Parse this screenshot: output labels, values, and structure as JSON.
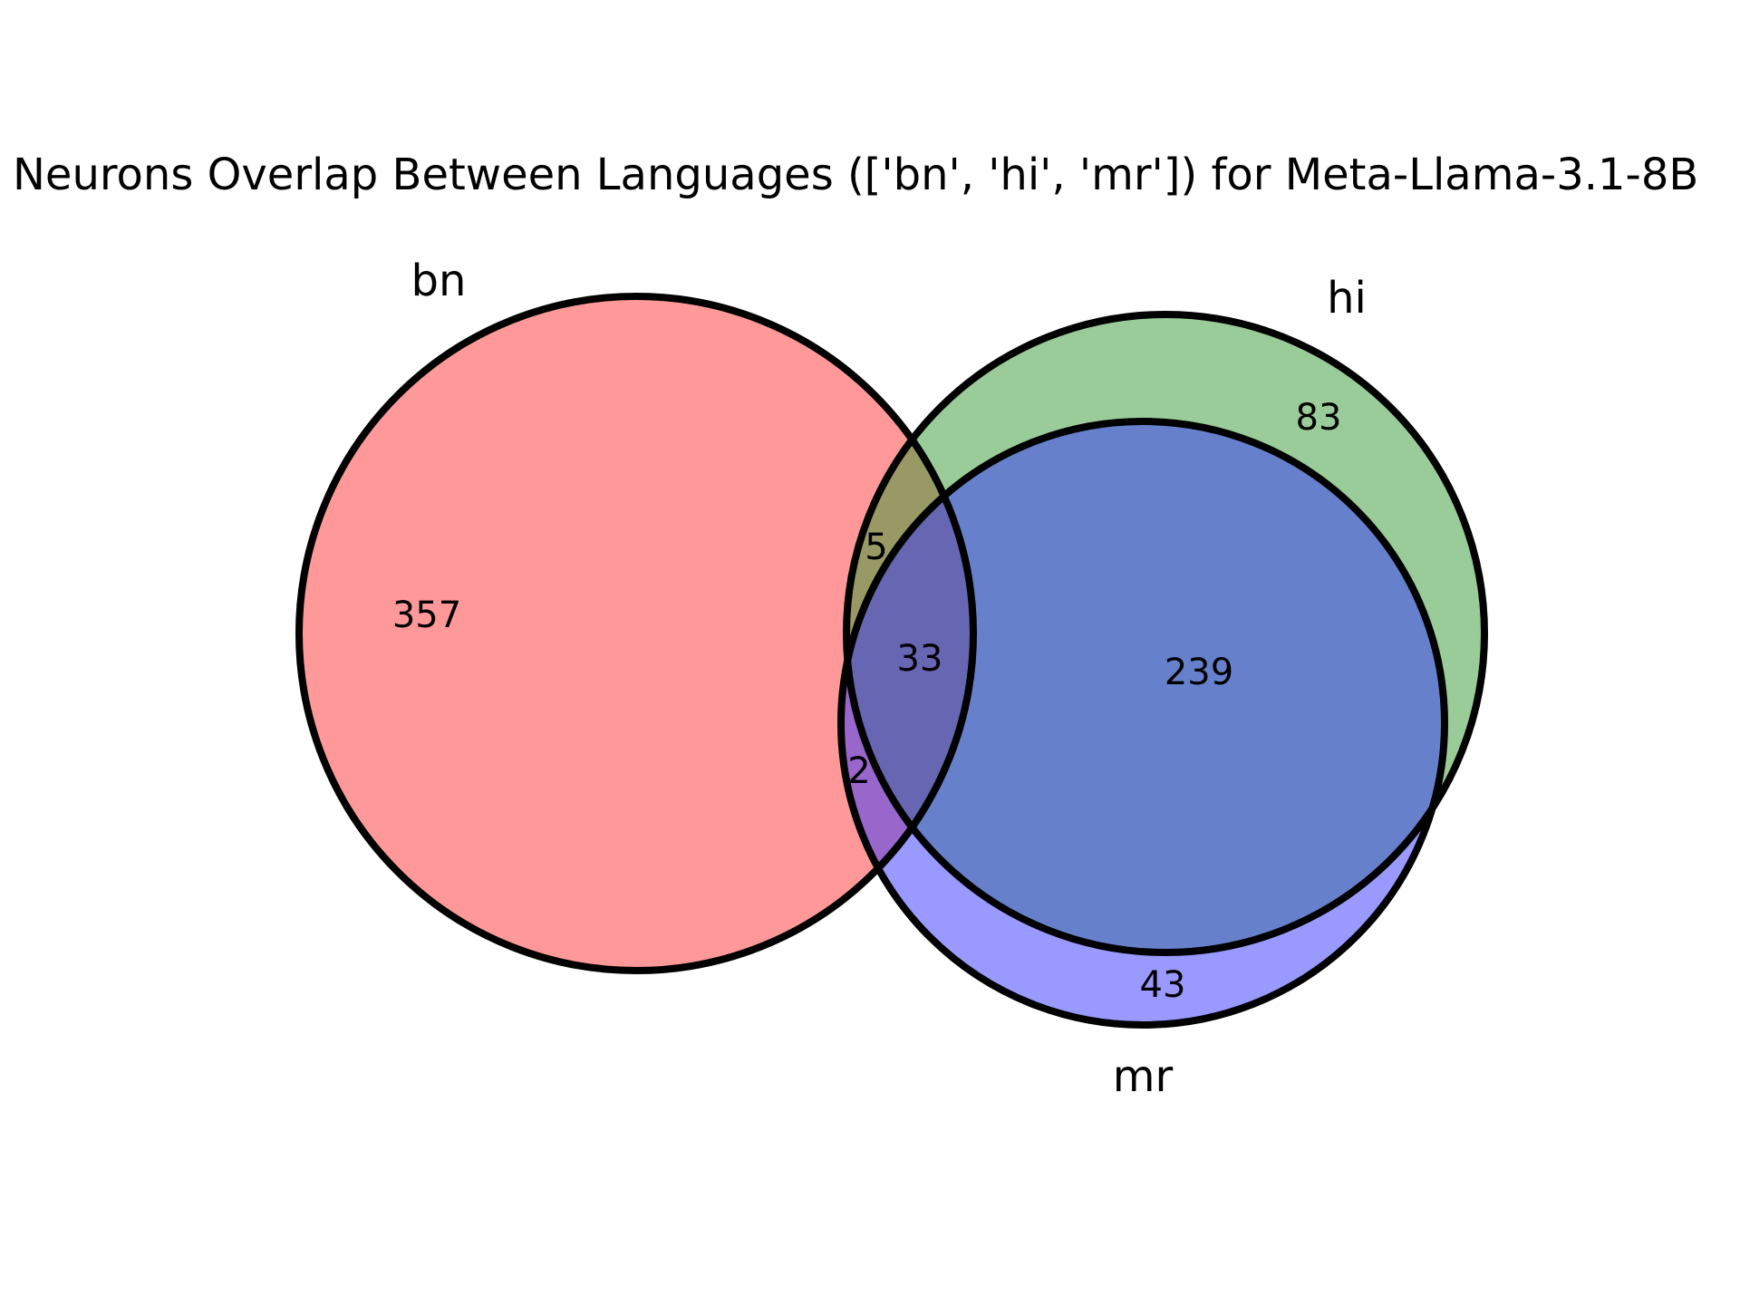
{
  "title": "Neurons Overlap Between Languages (['bn', 'hi', 'mr']) for Meta-Llama-3.1-8B",
  "sets": [
    {
      "key": "bn",
      "label": "bn",
      "color": "#ff3333",
      "alpha": 0.5
    },
    {
      "key": "hi",
      "label": "hi",
      "color": "#339933",
      "alpha": 0.5
    },
    {
      "key": "mr",
      "label": "mr",
      "color": "#3333ff",
      "alpha": 0.5
    }
  ],
  "region_counts": {
    "bn_only": "357",
    "hi_only": "83",
    "mr_only": "43",
    "bn_hi_only": "5",
    "bn_mr_only": "2",
    "hi_mr_only": "239",
    "bn_hi_mr": "33"
  },
  "chart_data": {
    "type": "venn3",
    "sets": [
      "bn",
      "hi",
      "mr"
    ],
    "regions": [
      {
        "sets": [
          "bn"
        ],
        "value": 357
      },
      {
        "sets": [
          "hi"
        ],
        "value": 83
      },
      {
        "sets": [
          "mr"
        ],
        "value": 43
      },
      {
        "sets": [
          "bn",
          "hi"
        ],
        "value": 5
      },
      {
        "sets": [
          "bn",
          "mr"
        ],
        "value": 2
      },
      {
        "sets": [
          "hi",
          "mr"
        ],
        "value": 239
      },
      {
        "sets": [
          "bn",
          "hi",
          "mr"
        ],
        "value": 33
      }
    ]
  }
}
